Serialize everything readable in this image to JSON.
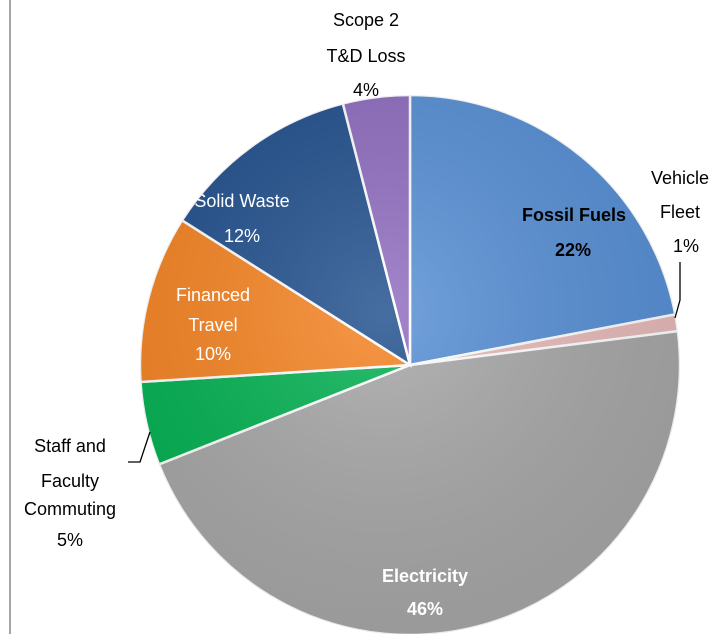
{
  "chart_data": {
    "type": "pie",
    "title": "",
    "slices": [
      {
        "name": "Fossil Fuels",
        "value": 22,
        "pct_label": "22%",
        "color": "#558ed5",
        "inside": true,
        "bold": true,
        "text_color": "#000000"
      },
      {
        "name": "Vehicle Fleet",
        "value": 1,
        "pct_label": "1%",
        "color": "#e6b9b8",
        "inside": false,
        "bold": false,
        "text_color": "#000000"
      },
      {
        "name": "Electricity",
        "value": 46,
        "pct_label": "46%",
        "color": "#a6a6a6",
        "inside": true,
        "bold": true,
        "text_color": "#ffffff"
      },
      {
        "name": "Staff and Faculty Commuting",
        "value": 5,
        "pct_label": "5%",
        "color": "#00b050",
        "inside": false,
        "bold": false,
        "text_color": "#000000"
      },
      {
        "name": "Financed Travel",
        "value": 10,
        "pct_label": "10%",
        "color": "#f58220",
        "inside": true,
        "bold": false,
        "text_color": "#ffffff"
      },
      {
        "name": "Solid Waste",
        "value": 12,
        "pct_label": "12%",
        "color": "#1f4e8c",
        "inside": true,
        "bold": false,
        "text_color": "#ffffff"
      },
      {
        "name": "Scope 2 T&D Loss",
        "value": 4,
        "pct_label": "4%",
        "color": "#8e6bbf",
        "inside": false,
        "bold": false,
        "text_color": "#000000"
      }
    ],
    "legend": "none",
    "labels": {
      "fossil": [
        "Fossil Fuels",
        "22%"
      ],
      "vehicle": [
        "Vehicle",
        "Fleet",
        "1%"
      ],
      "electricity": [
        "Electricity",
        "46%"
      ],
      "commuting": [
        "Staff and",
        "Faculty",
        "Commuting",
        "5%"
      ],
      "travel": [
        "Financed",
        "Travel",
        "10%"
      ],
      "waste": [
        "Solid Waste",
        "12%"
      ],
      "td": [
        "Scope 2",
        "T&D Loss",
        "4%"
      ]
    }
  }
}
